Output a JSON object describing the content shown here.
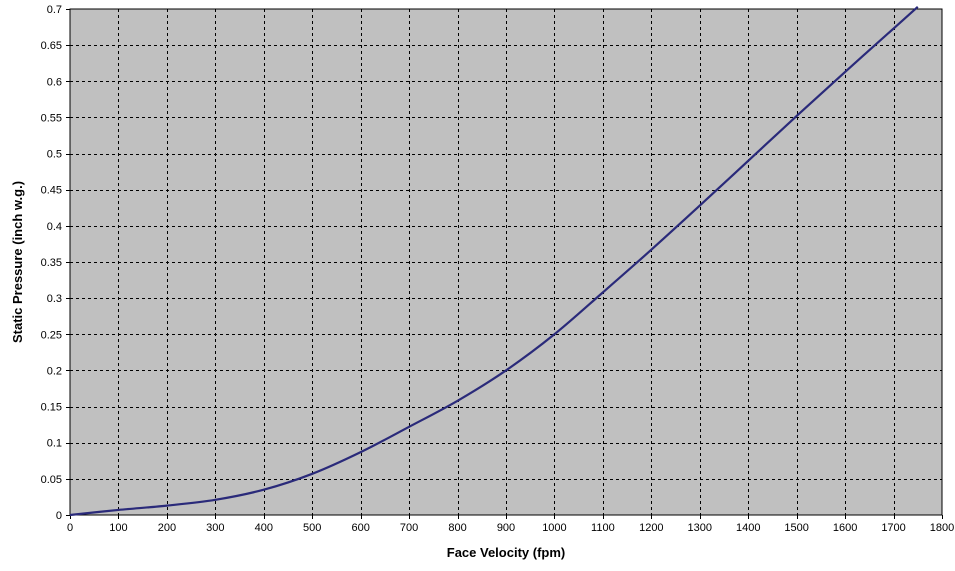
{
  "chart_data": {
    "type": "line",
    "title": "",
    "xlabel": "Face Velocity (fpm)",
    "ylabel": "Static Pressure (inch w.g.)",
    "xlim": [
      0,
      1800
    ],
    "ylim": [
      0,
      0.7
    ],
    "xticks": [
      "0",
      "100",
      "200",
      "300",
      "400",
      "500",
      "600",
      "700",
      "800",
      "900",
      "1000",
      "1100",
      "1200",
      "1300",
      "1400",
      "1500",
      "1600",
      "1700",
      "1800"
    ],
    "yticks": [
      "0",
      "0.05",
      "0.1",
      "0.15",
      "0.2",
      "0.25",
      "0.3",
      "0.35",
      "0.4",
      "0.45",
      "0.5",
      "0.55",
      "0.6",
      "0.65",
      "0.7"
    ],
    "grid": true,
    "legend": "none",
    "series": [
      {
        "name": "",
        "color": "#2a2a7a",
        "x": [
          0,
          100,
          200,
          300,
          400,
          500,
          600,
          700,
          800,
          900,
          1000,
          1100,
          1200,
          1300,
          1400,
          1500,
          1600,
          1700,
          1750
        ],
        "y": [
          0.0,
          0.007,
          0.013,
          0.021,
          0.035,
          0.057,
          0.087,
          0.122,
          0.158,
          0.2,
          0.25,
          0.308,
          0.367,
          0.428,
          0.49,
          0.552,
          0.613,
          0.673,
          0.703
        ]
      }
    ],
    "colors": {
      "plot_background": "#c0c0c0",
      "grid": "#000000",
      "line": "#2a2a7a"
    }
  }
}
